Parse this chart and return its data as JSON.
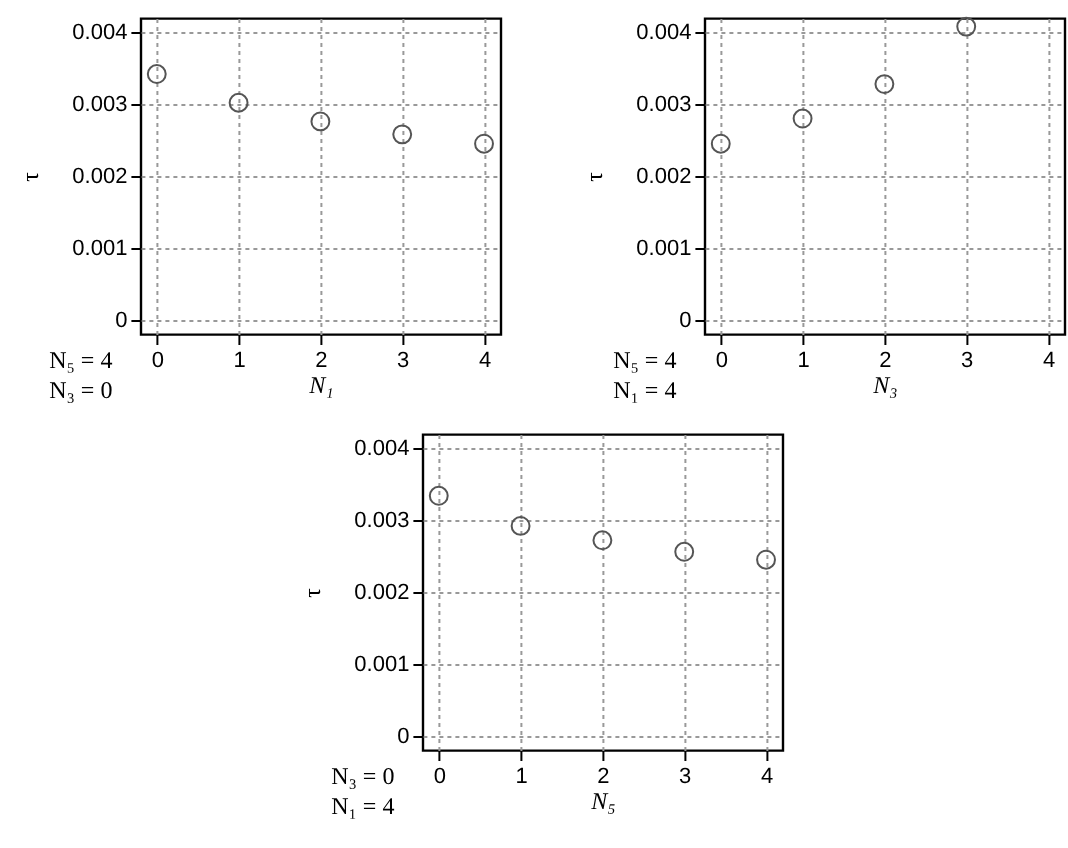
{
  "chart_data": [
    {
      "type": "scatter",
      "xlabel": "N₁",
      "ylabel": "τ",
      "x": [
        0,
        1,
        2,
        3,
        4
      ],
      "series": [
        {
          "color": "#555555",
          "values": [
            0.00342,
            0.00302,
            0.00276,
            0.00258,
            0.00245
          ]
        }
      ],
      "xlim": [
        -0.2,
        4.2
      ],
      "ylim": [
        -0.0002,
        0.0042
      ],
      "xticks": [
        0,
        1,
        2,
        3,
        4
      ],
      "yticks": [
        0,
        0.001,
        0.002,
        0.003,
        0.004
      ],
      "grid": true,
      "marker": "circle",
      "annotations": [
        "N₅ = 4",
        "N₃ = 0"
      ]
    },
    {
      "type": "scatter",
      "xlabel": "N₃",
      "ylabel": "τ",
      "x": [
        0,
        1,
        2,
        3
      ],
      "series": [
        {
          "color": "#555555",
          "values": [
            0.00245,
            0.0028,
            0.00328,
            0.00408
          ]
        }
      ],
      "xlim": [
        -0.2,
        4.2
      ],
      "ylim": [
        -0.0002,
        0.0042
      ],
      "xticks": [
        0,
        1,
        2,
        3,
        4
      ],
      "yticks": [
        0,
        0.001,
        0.002,
        0.003,
        0.004
      ],
      "grid": true,
      "marker": "circle",
      "annotations": [
        "N₅ = 4",
        "N₁ = 4"
      ]
    },
    {
      "type": "scatter",
      "xlabel": "N₅",
      "ylabel": "τ",
      "x": [
        0,
        1,
        2,
        3,
        4
      ],
      "series": [
        {
          "color": "#555555",
          "values": [
            0.00334,
            0.00292,
            0.00272,
            0.00256,
            0.00245
          ]
        }
      ],
      "xlim": [
        -0.2,
        4.2
      ],
      "ylim": [
        -0.0002,
        0.0042
      ],
      "xticks": [
        0,
        1,
        2,
        3,
        4
      ],
      "yticks": [
        0,
        0.001,
        0.002,
        0.003,
        0.004
      ],
      "grid": true,
      "marker": "circle",
      "annotations": [
        "N₃ = 0",
        "N₁ = 4"
      ]
    }
  ]
}
